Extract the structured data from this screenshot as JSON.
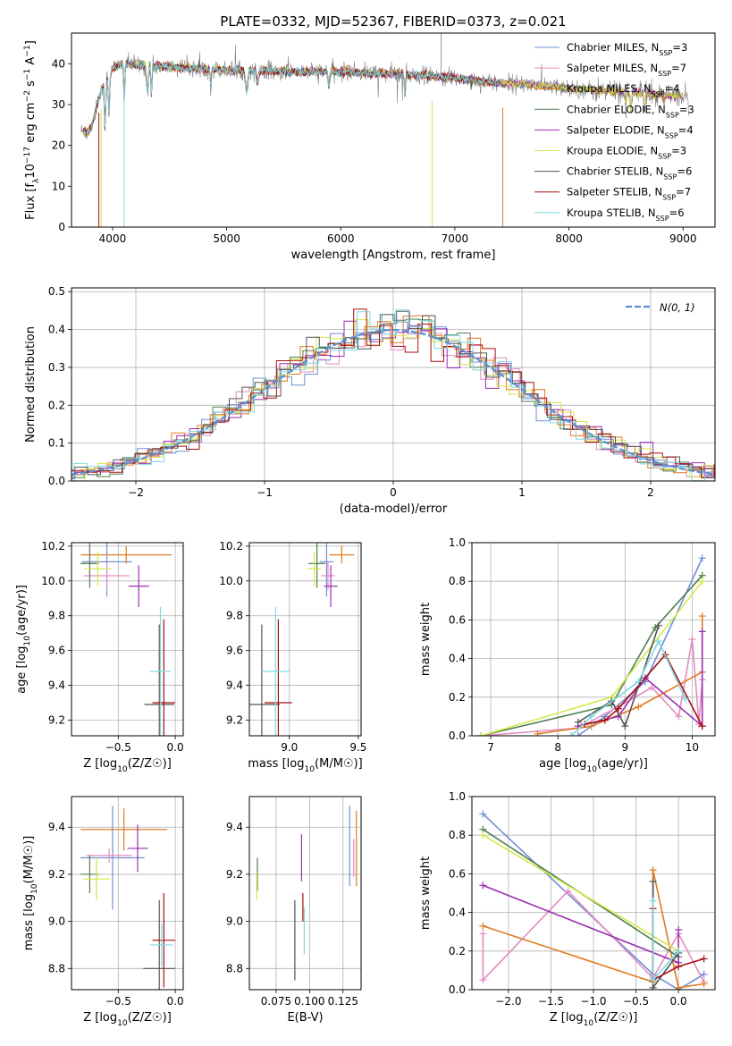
{
  "title": "PLATE=0332, MJD=52367, FIBERID=0373, z=0.021",
  "colors": {
    "Chabrier MILES": "#6f8fd6",
    "Salpeter MILES": "#e48cc0",
    "Kroupa MILES": "#e07b22",
    "Chabrier ELODIE": "#4f7f4f",
    "Salpeter ELODIE": "#9b2fb0",
    "Kroupa ELODIE": "#d4e84a",
    "Chabrier STELIB": "#555555",
    "Salpeter STELIB": "#a80f0f",
    "Kroupa STELIB": "#7fd9e2",
    "gauss": "#5b8fd0"
  },
  "chart_data": [
    {
      "id": "spectrum",
      "type": "line",
      "xlabel": "wavelength [Angstrom, rest frame]",
      "ylabel": "Flux [f_λ 10^-17 erg cm^-2 s^-1 A^-1]",
      "xlim": [
        3640,
        9280
      ],
      "ylim": [
        0,
        47.5
      ],
      "xticks": [
        4000,
        5000,
        6000,
        7000,
        8000,
        9000
      ],
      "yticks": [
        0,
        10,
        20,
        30,
        40
      ],
      "grid": false,
      "legend_position": "right",
      "legend": [
        {
          "model": "Chabrier MILES",
          "nssp": "3"
        },
        {
          "model": "Salpeter MILES",
          "nssp": "7"
        },
        {
          "model": "Kroupa MILES",
          "nssp": "4"
        },
        {
          "model": "Chabrier ELODIE",
          "nssp": "3"
        },
        {
          "model": "Salpeter ELODIE",
          "nssp": "4"
        },
        {
          "model": "Kroupa ELODIE",
          "nssp": "3"
        },
        {
          "model": "Chabrier STELIB",
          "nssp": "6"
        },
        {
          "model": "Salpeter STELIB",
          "nssp": "7"
        },
        {
          "model": "Kroupa STELIB",
          "nssp": "6"
        }
      ],
      "data_color": "gray",
      "continuum_x": [
        3720,
        3800,
        3900,
        4000,
        4100,
        4300,
        4600,
        5000,
        5500,
        6000,
        6500,
        7000,
        7300,
        7600,
        8000,
        8500,
        9000,
        9050
      ],
      "continuum_y": [
        26,
        30,
        35,
        39,
        40,
        39.5,
        39,
        38.5,
        38,
        38,
        37.5,
        36.5,
        35.5,
        35,
        34,
        33,
        32,
        32
      ]
    },
    {
      "id": "residuals",
      "type": "histogram",
      "xlabel": "(data-model)/error",
      "ylabel": "Normed distribution",
      "xlim": [
        -2.5,
        2.5
      ],
      "ylim": [
        0,
        0.51
      ],
      "xticks": [
        -2,
        -1,
        0,
        1,
        2
      ],
      "yticks": [
        0.0,
        0.1,
        0.2,
        0.3,
        0.4,
        0.5
      ],
      "grid": true,
      "legend_position": "top-right",
      "legend_label": "N(0,1)",
      "bin_width": 0.1,
      "reference_curve": "gaussian, mean 0, sigma 1"
    },
    {
      "id": "age-vs-Z",
      "type": "errorbar",
      "xlabel": "Z [log10(Z/Z☉)]",
      "ylabel": "age  [log10(age/yr)]",
      "xlim": [
        -0.91,
        0.07
      ],
      "ylim": [
        9.11,
        10.22
      ],
      "xticks": [
        -0.5,
        0.0
      ],
      "yticks": [
        9.2,
        9.4,
        9.6,
        9.8,
        10.0,
        10.2
      ],
      "grid": true,
      "points": [
        {
          "model": "Chabrier MILES",
          "x": -0.6,
          "xerr": 0.22,
          "y": 10.11,
          "yerr": 0.2
        },
        {
          "model": "Salpeter MILES",
          "x": -0.6,
          "xerr": 0.2,
          "y": 10.03,
          "yerr": 0.08
        },
        {
          "model": "Kroupa MILES",
          "x": -0.43,
          "xerr": 0.4,
          "y": 10.15,
          "yerr": 0.05
        },
        {
          "model": "Chabrier ELODIE",
          "x": -0.75,
          "xerr": 0.08,
          "y": 10.1,
          "yerr": 0.14
        },
        {
          "model": "Salpeter ELODIE",
          "x": -0.32,
          "xerr": 0.09,
          "y": 9.97,
          "yerr": 0.12
        },
        {
          "model": "Kroupa ELODIE",
          "x": -0.68,
          "xerr": 0.12,
          "y": 10.07,
          "yerr": 0.1
        },
        {
          "model": "Chabrier STELIB",
          "x": -0.14,
          "xerr": 0.13,
          "y": 9.29,
          "yerr": 0.46
        },
        {
          "model": "Salpeter STELIB",
          "x": -0.1,
          "xerr": 0.1,
          "y": 9.3,
          "yerr": 0.48
        },
        {
          "model": "Kroupa STELIB",
          "x": -0.13,
          "xerr": 0.09,
          "y": 9.48,
          "yerr": 0.37
        }
      ]
    },
    {
      "id": "age-vs-mass",
      "type": "errorbar",
      "xlabel": "mass [log10(M/M☉)]",
      "ylabel": "",
      "xlim": [
        8.71,
        9.52
      ],
      "ylim": [
        9.11,
        10.22
      ],
      "xticks": [
        9.0,
        9.5
      ],
      "yticks": [
        9.2,
        9.4,
        9.6,
        9.8,
        10.0,
        10.2
      ],
      "grid": true,
      "points": [
        {
          "model": "Chabrier MILES",
          "x": 9.27,
          "xerr": 0.05,
          "y": 10.11,
          "yerr": 0.2
        },
        {
          "model": "Salpeter MILES",
          "x": 9.28,
          "xerr": 0.05,
          "y": 10.03,
          "yerr": 0.08
        },
        {
          "model": "Kroupa MILES",
          "x": 9.38,
          "xerr": 0.09,
          "y": 10.15,
          "yerr": 0.05
        },
        {
          "model": "Chabrier ELODIE",
          "x": 9.2,
          "xerr": 0.06,
          "y": 10.1,
          "yerr": 0.14
        },
        {
          "model": "Salpeter ELODIE",
          "x": 9.3,
          "xerr": 0.05,
          "y": 9.97,
          "yerr": 0.12
        },
        {
          "model": "Kroupa ELODIE",
          "x": 9.18,
          "xerr": 0.05,
          "y": 10.07,
          "yerr": 0.1
        },
        {
          "model": "Chabrier STELIB",
          "x": 8.8,
          "xerr": 0.13,
          "y": 9.29,
          "yerr": 0.46
        },
        {
          "model": "Salpeter STELIB",
          "x": 8.92,
          "xerr": 0.1,
          "y": 9.3,
          "yerr": 0.48
        },
        {
          "model": "Kroupa STELIB",
          "x": 8.9,
          "xerr": 0.1,
          "y": 9.48,
          "yerr": 0.37
        }
      ]
    },
    {
      "id": "weight-vs-age",
      "type": "line",
      "xlabel": "age  [log10(age/yr)]",
      "ylabel": "mass weight",
      "xlim": [
        6.72,
        10.34
      ],
      "ylim": [
        0,
        1
      ],
      "xticks": [
        7,
        8,
        9,
        10
      ],
      "yticks": [
        0.0,
        0.2,
        0.4,
        0.6,
        0.8,
        1.0
      ],
      "grid": true,
      "series": [
        {
          "model": "Chabrier MILES",
          "x": [
            8.3,
            8.7,
            9.3,
            10.15
          ],
          "y": [
            0.0,
            0.1,
            0.28,
            0.92
          ]
        },
        {
          "model": "Salpeter MILES",
          "x": [
            6.85,
            8.3,
            8.9,
            9.4,
            9.8,
            10.0,
            10.1,
            10.15
          ],
          "y": [
            0.0,
            0.04,
            0.15,
            0.25,
            0.1,
            0.5,
            0.06,
            0.29
          ]
        },
        {
          "model": "Kroupa MILES",
          "x": [
            7.7,
            8.5,
            9.2,
            10.15,
            10.15
          ],
          "y": [
            0.01,
            0.05,
            0.15,
            0.33,
            0.62
          ]
        },
        {
          "model": "Chabrier ELODIE",
          "x": [
            6.85,
            8.8,
            9.45,
            10.15
          ],
          "y": [
            0.0,
            0.16,
            0.56,
            0.83
          ]
        },
        {
          "model": "Salpeter ELODIE",
          "x": [
            8.3,
            8.9,
            9.3,
            10.15,
            10.15
          ],
          "y": [
            0.05,
            0.1,
            0.3,
            0.05,
            0.54
          ]
        },
        {
          "model": "Kroupa ELODIE",
          "x": [
            6.85,
            8.8,
            10.15
          ],
          "y": [
            0.0,
            0.2,
            0.8
          ]
        },
        {
          "model": "Chabrier STELIB",
          "x": [
            8.3,
            8.8,
            9.0,
            9.5
          ],
          "y": [
            0.07,
            0.18,
            0.05,
            0.57
          ]
        },
        {
          "model": "Salpeter STELIB",
          "x": [
            8.4,
            8.7,
            8.9,
            9.6,
            10.15
          ],
          "y": [
            0.06,
            0.08,
            0.14,
            0.42,
            0.05
          ]
        },
        {
          "model": "Kroupa STELIB",
          "x": [
            8.2,
            8.5,
            9.2,
            9.5,
            9.9
          ],
          "y": [
            0.0,
            0.1,
            0.28,
            0.49,
            0.19
          ]
        }
      ]
    },
    {
      "id": "mass-vs-Z",
      "type": "errorbar",
      "xlabel": "Z [log10(Z/Z☉)]",
      "ylabel": "mass [log10(M/M☉)]",
      "xlim": [
        -0.91,
        0.07
      ],
      "ylim": [
        8.71,
        9.53
      ],
      "xticks": [
        -0.5,
        0.0
      ],
      "yticks": [
        8.8,
        9.0,
        9.2,
        9.4
      ],
      "grid": true,
      "points": [
        {
          "model": "Chabrier MILES",
          "x": -0.55,
          "xerr": 0.28,
          "y": 9.27,
          "yerr": 0.22
        },
        {
          "model": "Salpeter MILES",
          "x": -0.58,
          "xerr": 0.2,
          "y": 9.28,
          "yerr": 0.03
        },
        {
          "model": "Kroupa MILES",
          "x": -0.45,
          "xerr": 0.38,
          "y": 9.39,
          "yerr": 0.09
        },
        {
          "model": "Chabrier ELODIE",
          "x": -0.75,
          "xerr": 0.08,
          "y": 9.2,
          "yerr": 0.08
        },
        {
          "model": "Salpeter ELODIE",
          "x": -0.33,
          "xerr": 0.09,
          "y": 9.31,
          "yerr": 0.1
        },
        {
          "model": "Kroupa ELODIE",
          "x": -0.69,
          "xerr": 0.12,
          "y": 9.18,
          "yerr": 0.09
        },
        {
          "model": "Chabrier STELIB",
          "x": -0.14,
          "xerr": 0.14,
          "y": 8.8,
          "yerr": 0.29
        },
        {
          "model": "Salpeter STELIB",
          "x": -0.1,
          "xerr": 0.1,
          "y": 8.92,
          "yerr": 0.2
        },
        {
          "model": "Kroupa STELIB",
          "x": -0.12,
          "xerr": 0.1,
          "y": 8.9,
          "yerr": 0.09
        }
      ]
    },
    {
      "id": "mass-vs-EBV",
      "type": "errorbar",
      "xlabel": "E(B-V)",
      "ylabel": "",
      "xlim": [
        0.055,
        0.1385
      ],
      "ylim": [
        8.71,
        9.53
      ],
      "xticks": [
        0.075,
        0.1,
        0.125
      ],
      "yticks": [
        8.8,
        9.0,
        9.2,
        9.4
      ],
      "grid": true,
      "points": [
        {
          "model": "Chabrier MILES",
          "x": 0.13,
          "y": 9.32,
          "yerr": 0.17
        },
        {
          "model": "Salpeter MILES",
          "x": 0.133,
          "y": 9.27,
          "yerr": 0.08
        },
        {
          "model": "Kroupa MILES",
          "x": 0.135,
          "y": 9.31,
          "yerr": 0.16
        },
        {
          "model": "Chabrier ELODIE",
          "x": 0.061,
          "y": 9.2,
          "yerr": 0.07
        },
        {
          "model": "Salpeter ELODIE",
          "x": 0.094,
          "y": 9.27,
          "yerr": 0.1
        },
        {
          "model": "Kroupa ELODIE",
          "x": 0.0605,
          "y": 9.15,
          "yerr": 0.06
        },
        {
          "model": "Chabrier STELIB",
          "x": 0.089,
          "y": 8.92,
          "yerr": 0.17
        },
        {
          "model": "Salpeter STELIB",
          "x": 0.095,
          "y": 9.06,
          "yerr": 0.06
        },
        {
          "model": "Kroupa STELIB",
          "x": 0.096,
          "y": 8.96,
          "yerr": 0.1
        }
      ]
    },
    {
      "id": "weight-vs-Z",
      "type": "line",
      "xlabel": "Z [log10(Z/Z☉)]",
      "ylabel": "mass weight",
      "xlim": [
        -2.43,
        0.43
      ],
      "ylim": [
        0,
        1
      ],
      "xticks": [
        -2.0,
        -1.5,
        -1.0,
        -0.5,
        0.0
      ],
      "yticks": [
        0.0,
        0.2,
        0.4,
        0.6,
        0.8,
        1.0
      ],
      "grid": true,
      "series": [
        {
          "model": "Chabrier MILES",
          "x": [
            -2.3,
            -0.3,
            0.0,
            0.3
          ],
          "y": [
            0.91,
            0.08,
            0.0,
            0.08
          ]
        },
        {
          "model": "Salpeter MILES",
          "x": [
            -2.3,
            -2.3,
            -1.3,
            -0.3,
            0.0,
            0.3
          ],
          "y": [
            0.29,
            0.05,
            0.51,
            0.06,
            0.29,
            0.04
          ]
        },
        {
          "model": "Kroupa MILES",
          "x": [
            -2.3,
            -0.3,
            -0.3,
            0.0,
            0.3
          ],
          "y": [
            0.33,
            0.04,
            0.62,
            0.01,
            0.03
          ]
        },
        {
          "model": "Chabrier ELODIE",
          "x": [
            -2.3,
            0.0
          ],
          "y": [
            0.83,
            0.17
          ]
        },
        {
          "model": "Salpeter ELODIE",
          "x": [
            -2.3,
            0.0,
            0.0
          ],
          "y": [
            0.54,
            0.14,
            0.31
          ]
        },
        {
          "model": "Kroupa ELODIE",
          "x": [
            -2.3,
            0.0
          ],
          "y": [
            0.8,
            0.2
          ]
        },
        {
          "model": "Chabrier STELIB",
          "x": [
            -0.3,
            -0.3,
            0.0
          ],
          "y": [
            0.56,
            0.01,
            0.19
          ]
        },
        {
          "model": "Salpeter STELIB",
          "x": [
            -0.3,
            -0.3,
            0.0,
            0.3
          ],
          "y": [
            0.42,
            0.05,
            0.12,
            0.16
          ]
        },
        {
          "model": "Kroupa STELIB",
          "x": [
            -0.3,
            -0.3,
            0.0
          ],
          "y": [
            0.46,
            0.05,
            0.2
          ]
        }
      ]
    }
  ]
}
